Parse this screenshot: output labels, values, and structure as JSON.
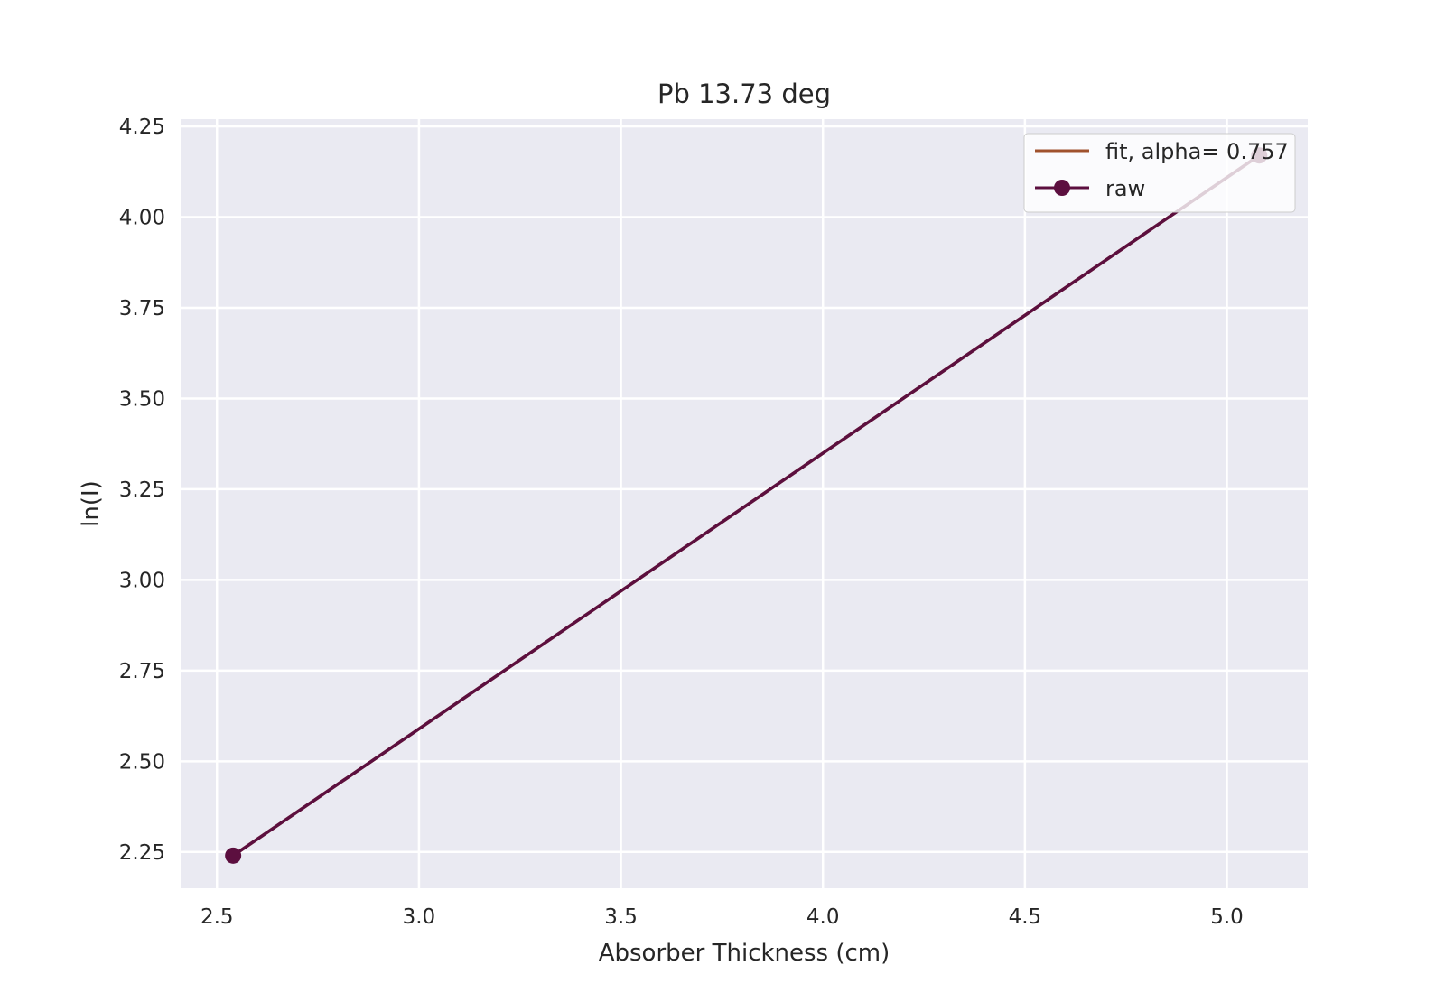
{
  "chart_data": {
    "type": "line",
    "title": "Pb 13.73 deg",
    "xlabel": "Absorber Thickness (cm)",
    "ylabel": "ln(I)",
    "xlim": [
      2.41,
      5.2
    ],
    "ylim": [
      2.15,
      4.27
    ],
    "xticks": [
      2.5,
      3.0,
      3.5,
      4.0,
      4.5,
      5.0
    ],
    "xtick_labels": [
      "2.5",
      "3.0",
      "3.5",
      "4.0",
      "4.5",
      "5.0"
    ],
    "yticks": [
      2.25,
      2.5,
      2.75,
      3.0,
      3.25,
      3.5,
      3.75,
      4.0,
      4.25
    ],
    "ytick_labels": [
      "2.25",
      "2.50",
      "2.75",
      "3.00",
      "3.25",
      "3.50",
      "3.75",
      "4.00",
      "4.25"
    ],
    "grid": true,
    "background": "#eaeaf2",
    "legend_position": "top-right",
    "series": [
      {
        "name": "fit, alpha= 0.757",
        "color": "#a0522d",
        "marker": "none",
        "x": [
          2.54,
          5.08
        ],
        "y": [
          2.24,
          4.17
        ]
      },
      {
        "name": "raw",
        "color": "#5c0f3f",
        "marker": "circle",
        "x": [
          2.54,
          5.08
        ],
        "y": [
          2.24,
          4.17
        ]
      }
    ]
  }
}
